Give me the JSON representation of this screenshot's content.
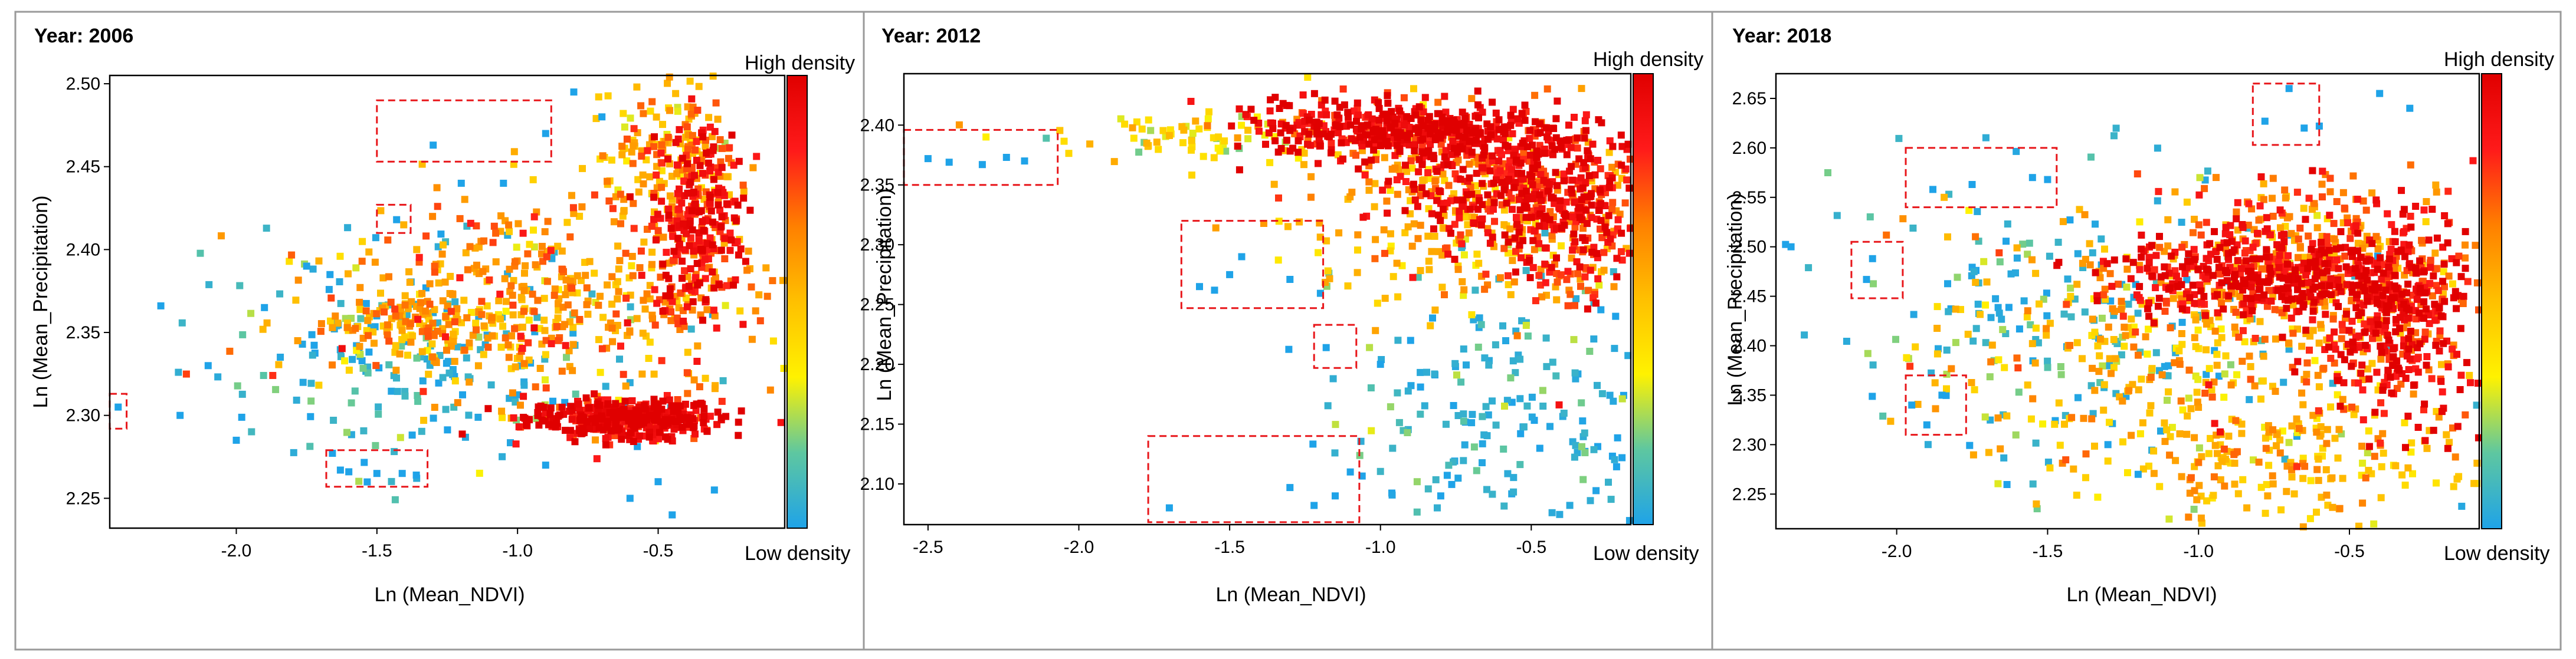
{
  "figure": {
    "colorbar_low": "Low density",
    "colorbar_high": "High density",
    "colorbar_colors": [
      "#1fa3e8",
      "#5ec7a0",
      "#fff200",
      "#ffc000",
      "#ff8000",
      "#ff1a1a",
      "#e00000"
    ],
    "box_color": "#e8161a"
  },
  "chart_data": [
    {
      "type": "scatter",
      "title": "Year: 2006",
      "xlabel": "Ln (Mean_NDVI)",
      "ylabel": "Ln (Mean_Precipitation)",
      "xlim": [
        -2.45,
        -0.05
      ],
      "ylim": [
        2.232,
        2.505
      ],
      "xticks": [
        -2.0,
        -1.5,
        -1.0,
        -0.5
      ],
      "xtick_labels": [
        "-2.0",
        "-1.5",
        "-1.0",
        "-0.5"
      ],
      "yticks": [
        2.25,
        2.3,
        2.35,
        2.4,
        2.45,
        2.5
      ],
      "ytick_labels": [
        "2.25",
        "2.30",
        "2.35",
        "2.40",
        "2.45",
        "2.50"
      ],
      "clusters": [
        {
          "cx": -0.62,
          "cy": 2.298,
          "sx": 0.17,
          "sy": 0.006,
          "n": 420,
          "d": 0.95
        },
        {
          "cx": -0.36,
          "cy": 2.42,
          "sx": 0.08,
          "sy": 0.03,
          "n": 300,
          "d": 0.85
        },
        {
          "cx": -0.85,
          "cy": 2.37,
          "sx": 0.4,
          "sy": 0.03,
          "n": 450,
          "d": 0.6
        },
        {
          "cx": -1.35,
          "cy": 2.355,
          "sx": 0.2,
          "sy": 0.012,
          "n": 140,
          "d": 0.55
        },
        {
          "cx": -0.5,
          "cy": 2.46,
          "sx": 0.12,
          "sy": 0.025,
          "n": 150,
          "d": 0.55
        },
        {
          "cx": -1.3,
          "cy": 2.33,
          "sx": 0.4,
          "sy": 0.035,
          "n": 200,
          "d": 0.1
        }
      ],
      "sparse_points": [
        [
          -2.42,
          2.305
        ],
        [
          -1.3,
          2.463
        ],
        [
          -1.43,
          2.418
        ],
        [
          -1.63,
          2.267
        ],
        [
          -1.6,
          2.266
        ],
        [
          -1.5,
          2.265
        ],
        [
          -1.41,
          2.265
        ],
        [
          -1.36,
          2.264
        ],
        [
          -2.2,
          2.3
        ],
        [
          -2.1,
          2.33
        ],
        [
          -2.0,
          2.285
        ],
        [
          -1.9,
          2.365
        ],
        [
          -1.75,
          2.39
        ],
        [
          -1.2,
          2.44
        ],
        [
          -1.05,
          2.44
        ],
        [
          -0.9,
          2.47
        ],
        [
          -0.8,
          2.495
        ],
        [
          -0.7,
          2.48
        ],
        [
          -0.5,
          2.26
        ],
        [
          -0.45,
          2.24
        ],
        [
          -0.3,
          2.255
        ],
        [
          -0.6,
          2.25
        ],
        [
          -0.9,
          2.27
        ]
      ],
      "boxes": [
        {
          "x": [
            -2.45,
            -2.39
          ],
          "y": [
            2.292,
            2.313
          ]
        },
        {
          "x": [
            -1.68,
            -1.32
          ],
          "y": [
            2.257,
            2.279
          ]
        },
        {
          "x": [
            -1.5,
            -1.38
          ],
          "y": [
            2.41,
            2.427
          ]
        },
        {
          "x": [
            -1.5,
            -0.88
          ],
          "y": [
            2.453,
            2.49
          ]
        }
      ]
    },
    {
      "type": "scatter",
      "title": "Year: 2012",
      "xlabel": "Ln (Mean_NDVI)",
      "ylabel": "Ln (Mean_Precipitation)",
      "xlim": [
        -2.58,
        -0.17
      ],
      "ylim": [
        2.066,
        2.443
      ],
      "xticks": [
        -2.5,
        -2.0,
        -1.5,
        -1.0,
        -0.5
      ],
      "xtick_labels": [
        "-2.5",
        "-2.0",
        "-1.5",
        "-1.0",
        "-0.5"
      ],
      "yticks": [
        2.1,
        2.15,
        2.2,
        2.25,
        2.3,
        2.35,
        2.4
      ],
      "ytick_labels": [
        "2.10",
        "2.15",
        "2.20",
        "2.25",
        "2.30",
        "2.35",
        "2.40"
      ],
      "clusters": [
        {
          "cx": -0.9,
          "cy": 2.396,
          "sx": 0.25,
          "sy": 0.012,
          "n": 480,
          "d": 0.95
        },
        {
          "cx": -0.55,
          "cy": 2.35,
          "sx": 0.2,
          "sy": 0.03,
          "n": 420,
          "d": 0.9
        },
        {
          "cx": -0.35,
          "cy": 2.31,
          "sx": 0.1,
          "sy": 0.03,
          "n": 160,
          "d": 0.8
        },
        {
          "cx": -0.75,
          "cy": 2.33,
          "sx": 0.3,
          "sy": 0.04,
          "n": 250,
          "d": 0.55
        },
        {
          "cx": -1.6,
          "cy": 2.39,
          "sx": 0.3,
          "sy": 0.012,
          "n": 80,
          "d": 0.4
        },
        {
          "cx": -0.55,
          "cy": 2.16,
          "sx": 0.3,
          "sy": 0.06,
          "n": 220,
          "d": 0.1
        }
      ],
      "sparse_points": [
        [
          -2.5,
          2.372
        ],
        [
          -2.43,
          2.369
        ],
        [
          -2.32,
          2.367
        ],
        [
          -2.24,
          2.373
        ],
        [
          -2.18,
          2.37
        ],
        [
          -1.6,
          2.265
        ],
        [
          -1.55,
          2.262
        ],
        [
          -1.5,
          2.275
        ],
        [
          -1.46,
          2.29
        ],
        [
          -1.3,
          2.271
        ],
        [
          -1.18,
          2.214
        ],
        [
          -1.7,
          2.08
        ],
        [
          -1.3,
          2.097
        ],
        [
          -1.22,
          2.082
        ],
        [
          -1.15,
          2.09
        ],
        [
          -1.0,
          2.2
        ],
        [
          -0.9,
          2.22
        ],
        [
          -1.1,
          2.11
        ],
        [
          -0.8,
          2.09
        ]
      ],
      "boxes": [
        {
          "x": [
            -2.58,
            -2.07
          ],
          "y": [
            2.35,
            2.396
          ]
        },
        {
          "x": [
            -1.66,
            -1.19
          ],
          "y": [
            2.247,
            2.32
          ]
        },
        {
          "x": [
            -1.22,
            -1.08
          ],
          "y": [
            2.197,
            2.233
          ]
        },
        {
          "x": [
            -1.77,
            -1.07
          ],
          "y": [
            2.068,
            2.14
          ]
        }
      ]
    },
    {
      "type": "scatter",
      "title": "Year: 2018",
      "xlabel": "Ln (Mean_NDVI)",
      "ylabel": "Ln (Mean_Precipitation)",
      "xlim": [
        -2.4,
        -0.07
      ],
      "ylim": [
        2.215,
        2.675
      ],
      "xticks": [
        -2.0,
        -1.5,
        -1.0,
        -0.5
      ],
      "xtick_labels": [
        "-2.0",
        "-1.5",
        "-1.0",
        "-0.5"
      ],
      "yticks": [
        2.25,
        2.3,
        2.35,
        2.4,
        2.45,
        2.5,
        2.55,
        2.6,
        2.65
      ],
      "ytick_labels": [
        "2.25",
        "2.30",
        "2.35",
        "2.40",
        "2.45",
        "2.50",
        "2.55",
        "2.60",
        "2.65"
      ],
      "clusters": [
        {
          "cx": -0.75,
          "cy": 2.47,
          "sx": 0.3,
          "sy": 0.02,
          "n": 420,
          "d": 0.95
        },
        {
          "cx": -0.35,
          "cy": 2.42,
          "sx": 0.12,
          "sy": 0.05,
          "n": 360,
          "d": 0.9
        },
        {
          "cx": -0.6,
          "cy": 2.5,
          "sx": 0.25,
          "sy": 0.04,
          "n": 250,
          "d": 0.7
        },
        {
          "cx": -1.0,
          "cy": 2.4,
          "sx": 0.4,
          "sy": 0.07,
          "n": 400,
          "d": 0.55
        },
        {
          "cx": -0.7,
          "cy": 2.28,
          "sx": 0.3,
          "sy": 0.03,
          "n": 180,
          "d": 0.5
        },
        {
          "cx": -1.4,
          "cy": 2.42,
          "sx": 0.4,
          "sy": 0.08,
          "n": 200,
          "d": 0.15
        }
      ],
      "sparse_points": [
        [
          -2.1,
          2.467
        ],
        [
          -2.08,
          2.488
        ],
        [
          -1.88,
          2.558
        ],
        [
          -1.75,
          2.563
        ],
        [
          -1.55,
          2.57
        ],
        [
          -1.5,
          2.568
        ],
        [
          -1.95,
          2.34
        ],
        [
          -1.9,
          2.32
        ],
        [
          -1.85,
          2.35
        ],
        [
          -0.78,
          2.627
        ],
        [
          -0.65,
          2.62
        ],
        [
          -0.6,
          2.622
        ],
        [
          -0.7,
          2.66
        ],
        [
          -0.4,
          2.655
        ],
        [
          -0.3,
          2.64
        ],
        [
          -2.35,
          2.5
        ],
        [
          -1.3,
          2.3
        ],
        [
          -1.2,
          2.27
        ]
      ],
      "boxes": [
        {
          "x": [
            -2.15,
            -1.98
          ],
          "y": [
            2.448,
            2.505
          ]
        },
        {
          "x": [
            -1.97,
            -1.47
          ],
          "y": [
            2.54,
            2.6
          ]
        },
        {
          "x": [
            -1.97,
            -1.77
          ],
          "y": [
            2.31,
            2.37
          ]
        },
        {
          "x": [
            -0.82,
            -0.6
          ],
          "y": [
            2.603,
            2.665
          ]
        }
      ]
    }
  ]
}
